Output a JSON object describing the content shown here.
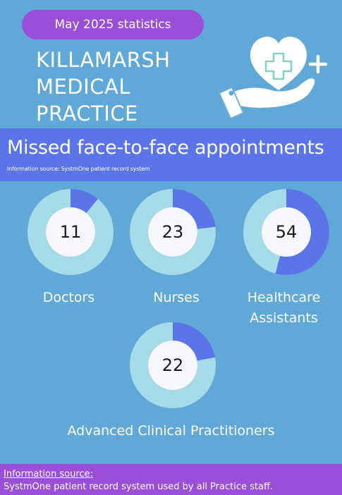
{
  "header": {
    "period_label": "May 2025 statistics",
    "practice_lines": [
      "KILLAMARSH",
      "MEDICAL",
      "PRACTICE"
    ]
  },
  "illustration": {
    "icon": "hand-holding-heart-icon"
  },
  "banner": {
    "title": "Missed face-to-face appointments",
    "subtitle": "Information source: SystmOne patient record system"
  },
  "chart_data": {
    "type": "donut",
    "title": "Missed face-to-face appointments",
    "series": [
      {
        "name": "Doctors",
        "value": 11,
        "ring_fraction": 0.11
      },
      {
        "name": "Nurses",
        "value": 23,
        "ring_fraction": 0.23
      },
      {
        "name": "Healthcare Assistants",
        "value": 54,
        "ring_fraction": 0.54
      },
      {
        "name": "Advanced Clinical Practitioners",
        "value": 22,
        "ring_fraction": 0.22
      }
    ],
    "colors": {
      "filled": "#5b74e8",
      "track": "#a5dbe8",
      "center": "#f7f7fb"
    }
  },
  "labels": {
    "doctors": "Doctors",
    "nurses": "Nurses",
    "hca_line1": "Healthcare",
    "hca_line2": "Assistants",
    "acp": "Advanced Clinical Practitioners"
  },
  "footer": {
    "source_label": "Information source",
    "source_detail": "SystmOne patient record system used by all Practice staff."
  },
  "colors": {
    "background": "#5fa8d7",
    "banner": "#5b74e8",
    "accent": "#9b4fd8"
  }
}
